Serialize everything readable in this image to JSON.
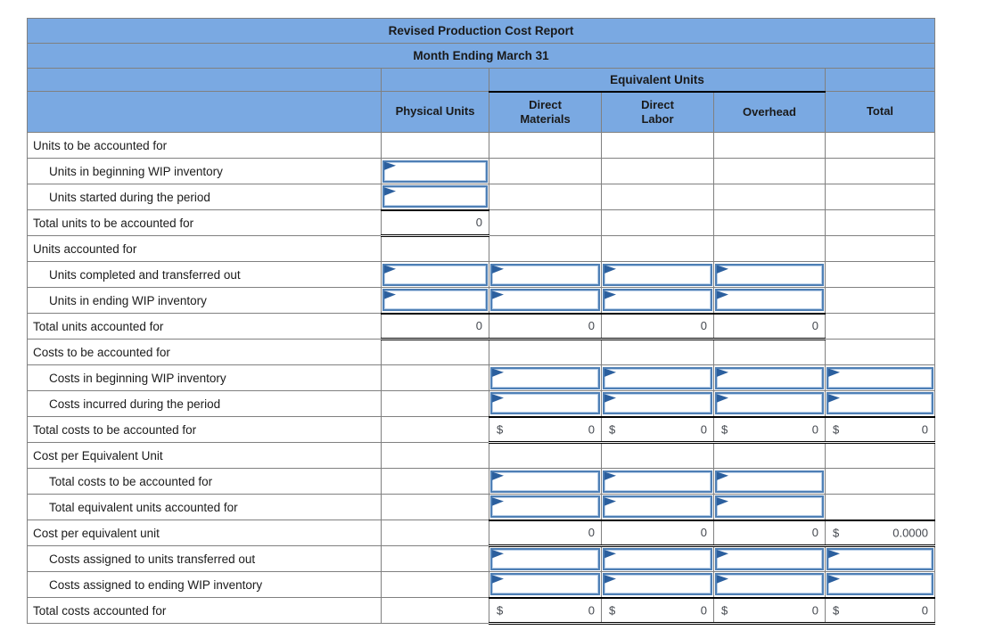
{
  "report": {
    "title": "Revised Production Cost Report",
    "subtitle": "Month Ending March 31",
    "equivalent_units_header": "Equivalent Units",
    "columns": [
      "Physical Units",
      "Direct\nMaterials",
      "Direct\nLabor",
      "Overhead",
      "Total"
    ],
    "column_keys": [
      "pu",
      "dm",
      "dl",
      "oh",
      "total"
    ],
    "rows": [
      {
        "label": "Units to be accounted for",
        "indent": false,
        "cells": {}
      },
      {
        "label": "Units in beginning WIP inventory",
        "indent": true,
        "cells": {
          "pu": {
            "type": "input"
          }
        }
      },
      {
        "label": "Units started during the period",
        "indent": true,
        "cells": {
          "pu": {
            "type": "input"
          }
        }
      },
      {
        "label": "Total units to be accounted for",
        "indent": false,
        "cells": {
          "pu": {
            "type": "value",
            "value": "0",
            "top": true,
            "double": true
          }
        }
      },
      {
        "label": "Units accounted for",
        "indent": false,
        "cells": {}
      },
      {
        "label": "Units completed and transferred out",
        "indent": true,
        "cells": {
          "pu": {
            "type": "input"
          },
          "dm": {
            "type": "input"
          },
          "dl": {
            "type": "input"
          },
          "oh": {
            "type": "input"
          }
        }
      },
      {
        "label": "Units in ending WIP inventory",
        "indent": true,
        "cells": {
          "pu": {
            "type": "input"
          },
          "dm": {
            "type": "input"
          },
          "dl": {
            "type": "input"
          },
          "oh": {
            "type": "input"
          }
        }
      },
      {
        "label": "Total units accounted for",
        "indent": false,
        "cells": {
          "pu": {
            "type": "value",
            "value": "0",
            "top": true,
            "double": true
          },
          "dm": {
            "type": "value",
            "value": "0",
            "top": true,
            "double": true
          },
          "dl": {
            "type": "value",
            "value": "0",
            "top": true,
            "double": true
          },
          "oh": {
            "type": "value",
            "value": "0",
            "top": true,
            "double": true
          }
        }
      },
      {
        "label": "Costs to be accounted for",
        "indent": false,
        "cells": {}
      },
      {
        "label": "Costs in beginning WIP inventory",
        "indent": true,
        "cells": {
          "dm": {
            "type": "input"
          },
          "dl": {
            "type": "input"
          },
          "oh": {
            "type": "input"
          },
          "total": {
            "type": "input"
          }
        }
      },
      {
        "label": "Costs incurred during the period",
        "indent": true,
        "cells": {
          "dm": {
            "type": "input"
          },
          "dl": {
            "type": "input"
          },
          "oh": {
            "type": "input"
          },
          "total": {
            "type": "input"
          }
        }
      },
      {
        "label": "Total costs to be accounted for",
        "indent": false,
        "cells": {
          "dm": {
            "type": "money",
            "currency": "$",
            "value": "0",
            "top": true,
            "double": true
          },
          "dl": {
            "type": "money",
            "currency": "$",
            "value": "0",
            "top": true,
            "double": true
          },
          "oh": {
            "type": "money",
            "currency": "$",
            "value": "0",
            "top": true,
            "double": true
          },
          "total": {
            "type": "money",
            "currency": "$",
            "value": "0",
            "top": true,
            "double": true
          }
        }
      },
      {
        "label": "Cost per Equivalent Unit",
        "indent": false,
        "cells": {}
      },
      {
        "label": "Total costs to be accounted for",
        "indent": true,
        "cells": {
          "dm": {
            "type": "input"
          },
          "dl": {
            "type": "input"
          },
          "oh": {
            "type": "input"
          }
        }
      },
      {
        "label": "Total equivalent units accounted for",
        "indent": true,
        "cells": {
          "dm": {
            "type": "input"
          },
          "dl": {
            "type": "input"
          },
          "oh": {
            "type": "input"
          }
        }
      },
      {
        "label": "Cost per equivalent unit",
        "indent": false,
        "cells": {
          "dm": {
            "type": "value",
            "value": "0",
            "top": true,
            "double": true
          },
          "dl": {
            "type": "value",
            "value": "0",
            "top": true,
            "double": true
          },
          "oh": {
            "type": "value",
            "value": "0",
            "top": true,
            "double": true
          },
          "total": {
            "type": "money",
            "currency": "$",
            "value": "0.0000",
            "top": true,
            "double": true
          }
        }
      },
      {
        "label": "Costs assigned to units transferred out",
        "indent": true,
        "cells": {
          "dm": {
            "type": "input"
          },
          "dl": {
            "type": "input"
          },
          "oh": {
            "type": "input"
          },
          "total": {
            "type": "input"
          }
        }
      },
      {
        "label": "Costs assigned to ending WIP inventory",
        "indent": true,
        "cells": {
          "dm": {
            "type": "input"
          },
          "dl": {
            "type": "input"
          },
          "oh": {
            "type": "input"
          },
          "total": {
            "type": "input"
          }
        }
      },
      {
        "label": "Total costs accounted for",
        "indent": false,
        "cells": {
          "dm": {
            "type": "money",
            "currency": "$",
            "value": "0",
            "top": true,
            "double": true
          },
          "dl": {
            "type": "money",
            "currency": "$",
            "value": "0",
            "top": true,
            "double": true
          },
          "oh": {
            "type": "money",
            "currency": "$",
            "value": "0",
            "top": true,
            "double": true
          },
          "total": {
            "type": "money",
            "currency": "$",
            "value": "0",
            "top": true,
            "double": true
          }
        }
      }
    ]
  },
  "colors": {
    "header_blue": "#7AA9E2",
    "grid_gray": "#808080",
    "input_border_blue": "#4E7FB5",
    "input_inner_blue": "#B9CFE8",
    "input_flag_blue": "#2B5F9E",
    "total_rule_black": "#000000",
    "value_text": "#44484F",
    "label_text": "#1B1B1B"
  }
}
